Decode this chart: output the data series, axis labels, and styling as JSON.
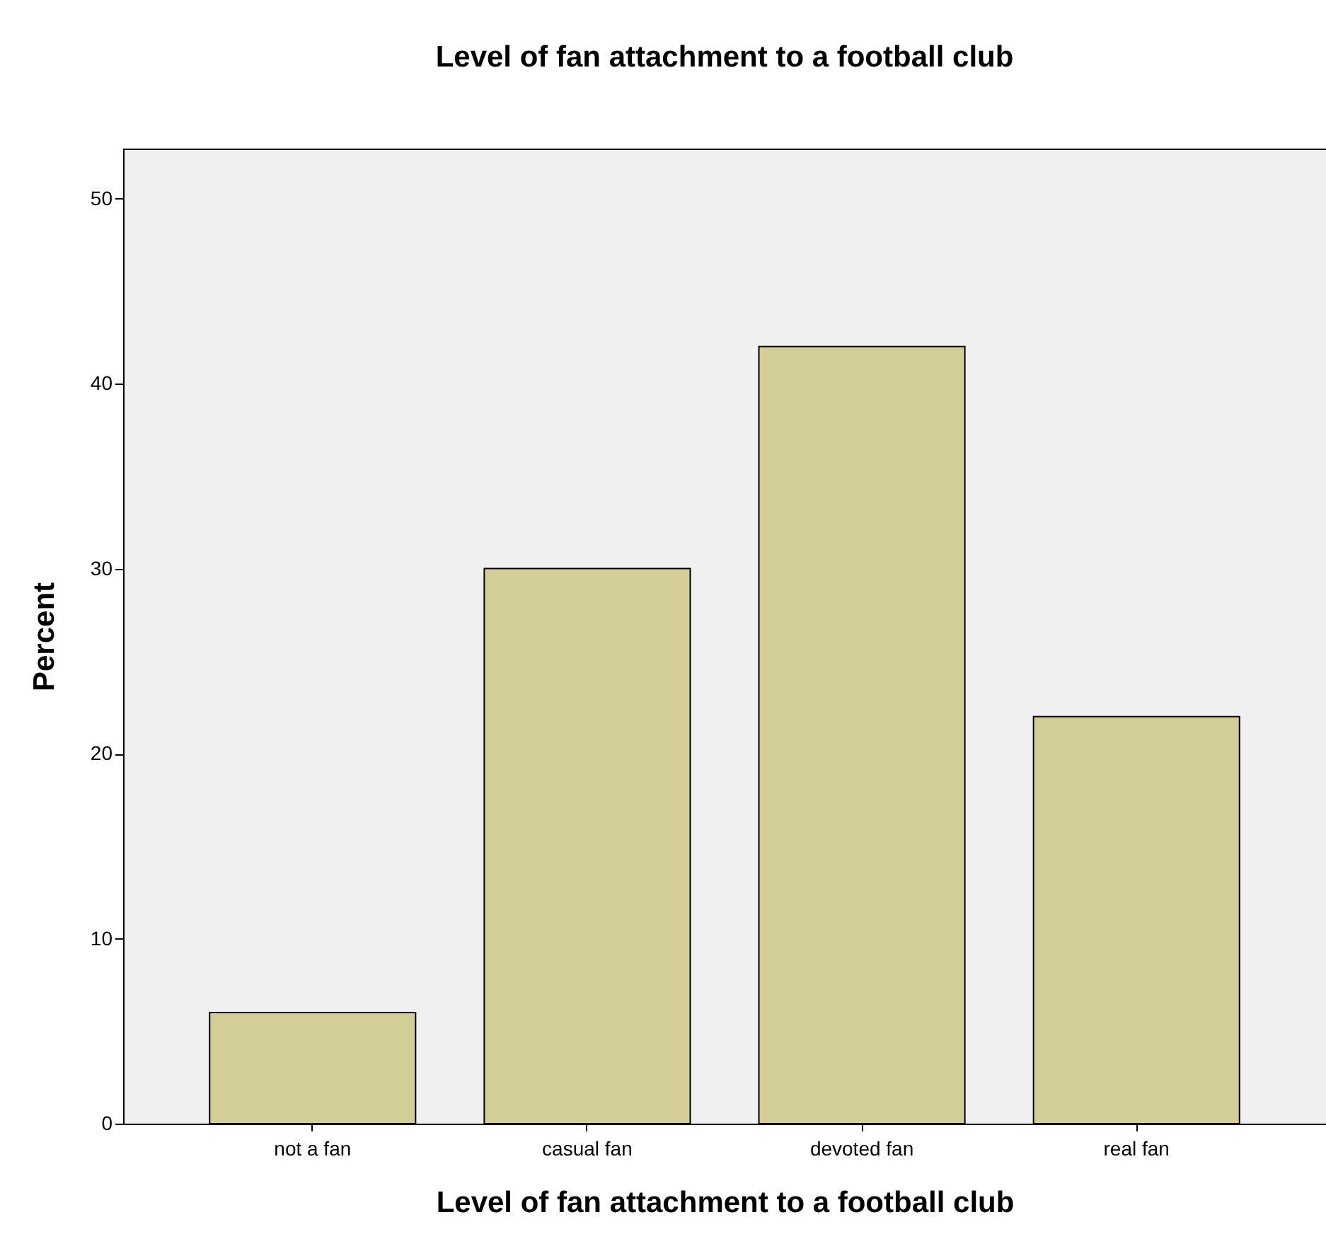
{
  "chart_data": {
    "type": "bar",
    "title": "Level of fan attachment to a football club",
    "xlabel": "Level of fan attachment to a football club",
    "ylabel": "Percent",
    "categories": [
      "not a fan",
      "casual fan",
      "devoted fan",
      "real fan"
    ],
    "values": [
      6,
      30,
      42,
      22
    ],
    "color": "#d3cd97",
    "ylim": [
      0,
      52.7
    ],
    "yticks": [
      0,
      10,
      20,
      30,
      40,
      50
    ],
    "grid": false
  }
}
